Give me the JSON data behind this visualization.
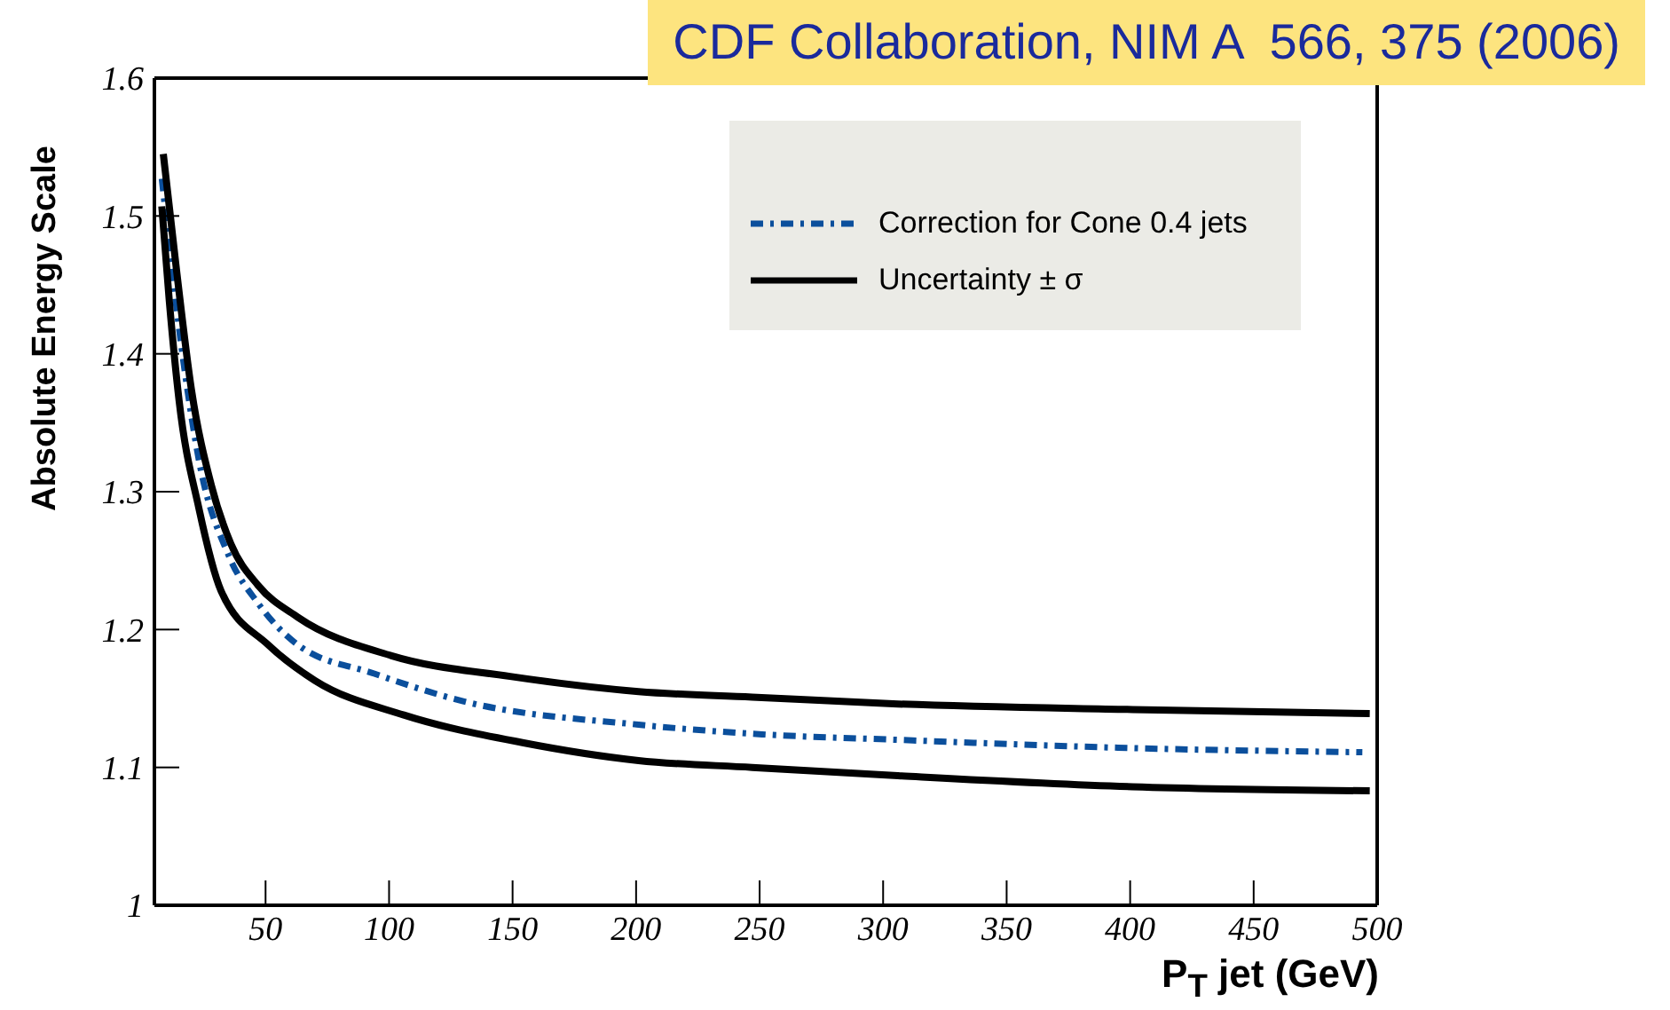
{
  "chart_data": {
    "type": "line",
    "xlabel": "P$_{T}$ jet (GeV)",
    "ylabel": "Absolute Energy Scale",
    "annotations": [
      "CDF Collaboration, NIM A  566, 375 (2006)"
    ],
    "xlim": [
      5,
      500
    ],
    "xticks": [
      50,
      100,
      150,
      200,
      250,
      300,
      350,
      400,
      450,
      500
    ],
    "ylim": [
      1,
      1.6
    ],
    "yticks": [
      1,
      1.1,
      1.2,
      1.3,
      1.4,
      1.5,
      1.6
    ],
    "legend": "top right",
    "marker": "none",
    "series": [
      {
        "name": "Correction for Cone 0.4 jets",
        "color": "#0b4f9c",
        "line_style": "dashed",
        "x": [
          8,
          17,
          23,
          35,
          47,
          63,
          94,
          130,
          201,
          251,
          306,
          401,
          494
        ],
        "values": [
          1.527,
          1.391,
          1.323,
          1.254,
          1.219,
          1.189,
          1.168,
          1.148,
          1.131,
          1.124,
          1.12,
          1.114,
          1.111
        ]
      },
      {
        "name": "Uncertainty ± σ",
        "color": "#000000",
        "line_style": "solid",
        "x": [
          8.6,
          14,
          20,
          28,
          36,
          47,
          63,
          101,
          149,
          201,
          247,
          306,
          401,
          497
        ],
        "values": [
          1.545,
          1.46,
          1.374,
          1.305,
          1.262,
          1.232,
          1.209,
          1.181,
          1.166,
          1.155,
          1.151,
          1.146,
          1.142,
          1.139
        ]
      },
      {
        "color": "#000000",
        "line_style": "solid",
        "x": [
          8,
          11,
          15,
          23,
          32,
          51,
          70,
          106,
          154,
          201,
          247,
          306,
          401,
          497
        ],
        "values": [
          1.507,
          1.439,
          1.366,
          1.288,
          1.228,
          1.189,
          1.163,
          1.138,
          1.118,
          1.105,
          1.1,
          1.094,
          1.086,
          1.083
        ]
      }
    ]
  }
}
